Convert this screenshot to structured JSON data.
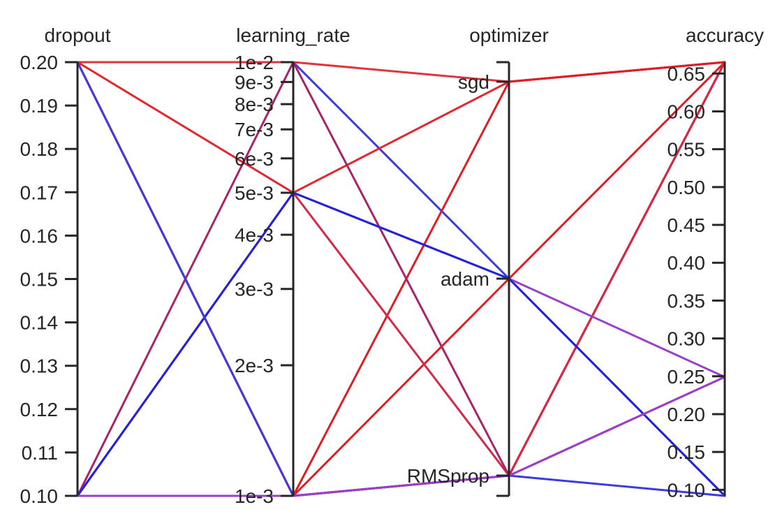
{
  "chart_data": {
    "type": "parallel_coordinates",
    "axes": [
      {
        "name": "dropout",
        "scale": "linear",
        "range": [
          0.1,
          0.2
        ],
        "ticks": [
          0.1,
          0.11,
          0.12,
          0.13,
          0.14,
          0.15,
          0.16,
          0.17,
          0.18,
          0.19,
          0.2
        ],
        "tick_labels": [
          "0.10",
          "0.11",
          "0.12",
          "0.13",
          "0.14",
          "0.15",
          "0.16",
          "0.17",
          "0.18",
          "0.19",
          "0.20"
        ],
        "tick_side": "left"
      },
      {
        "name": "learning_rate",
        "scale": "log",
        "range": [
          0.001,
          0.01
        ],
        "ticks": [
          0.001,
          0.002,
          0.003,
          0.004,
          0.005,
          0.006,
          0.007,
          0.008,
          0.009,
          0.01
        ],
        "tick_labels": [
          "1e-3",
          "2e-3",
          "3e-3",
          "4e-3",
          "5e-3",
          "6e-3",
          "7e-3",
          "8e-3",
          "9e-3",
          "1e-2"
        ],
        "tick_side": "left"
      },
      {
        "name": "optimizer",
        "scale": "categorical",
        "categories": [
          "RMSprop",
          "adam",
          "sgd"
        ],
        "tick_labels": [
          "RMSprop",
          "adam",
          "sgd"
        ],
        "tick_side": "left"
      },
      {
        "name": "accuracy",
        "scale": "linear",
        "range": [
          0.092,
          0.665
        ],
        "ticks": [
          0.1,
          0.15,
          0.2,
          0.25,
          0.3,
          0.35,
          0.4,
          0.45,
          0.5,
          0.55,
          0.6,
          0.65
        ],
        "tick_labels": [
          "0.10",
          "0.15",
          "0.20",
          "0.25",
          "0.30",
          "0.35",
          "0.40",
          "0.45",
          "0.50",
          "0.55",
          "0.60",
          "0.65"
        ],
        "tick_side": "left"
      }
    ],
    "records": [
      {
        "dropout": 0.2,
        "learning_rate": 0.01,
        "optimizer": "adam",
        "accuracy": 0.092,
        "color": "#3b3bdf"
      },
      {
        "dropout": 0.2,
        "learning_rate": 0.01,
        "optimizer": "sgd",
        "accuracy": 0.665,
        "color": "#e0353d"
      },
      {
        "dropout": 0.2,
        "learning_rate": 0.005,
        "optimizer": "sgd",
        "accuracy": 0.665,
        "color": "#e0282e"
      },
      {
        "dropout": 0.2,
        "learning_rate": 0.001,
        "optimizer": "RMSprop",
        "accuracy": 0.665,
        "color": "#e01c24"
      },
      {
        "dropout": 0.2,
        "learning_rate": 0.001,
        "optimizer": "adam",
        "accuracy": 0.665,
        "color": "#e01c24"
      },
      {
        "dropout": 0.1,
        "learning_rate": 0.001,
        "optimizer": "sgd",
        "accuracy": 0.665,
        "color": "#e01c24"
      },
      {
        "dropout": 0.1,
        "learning_rate": 0.001,
        "optimizer": "RMSprop",
        "accuracy": 0.665,
        "color": "#e01c24"
      },
      {
        "dropout": 0.1,
        "learning_rate": 0.005,
        "optimizer": "RMSprop",
        "accuracy": 0.665,
        "color": "#d42848"
      },
      {
        "dropout": 0.1,
        "learning_rate": 0.01,
        "optimizer": "RMSprop",
        "accuracy": 0.249,
        "color": "#a8246a"
      },
      {
        "dropout": 0.1,
        "learning_rate": 0.005,
        "optimizer": "adam",
        "accuracy": 0.249,
        "color": "#9a40c8"
      },
      {
        "dropout": 0.1,
        "learning_rate": 0.005,
        "optimizer": "adam",
        "accuracy": 0.092,
        "color": "#2222dd"
      },
      {
        "dropout": 0.2,
        "learning_rate": 0.001,
        "optimizer": "RMSprop",
        "accuracy": 0.092,
        "color": "#3b3bdf"
      },
      {
        "dropout": 0.1,
        "learning_rate": 0.001,
        "optimizer": "RMSprop",
        "accuracy": 0.249,
        "color": "#9a40c8"
      }
    ],
    "colorscale": [
      "#2222dd",
      "#e01c24"
    ]
  }
}
